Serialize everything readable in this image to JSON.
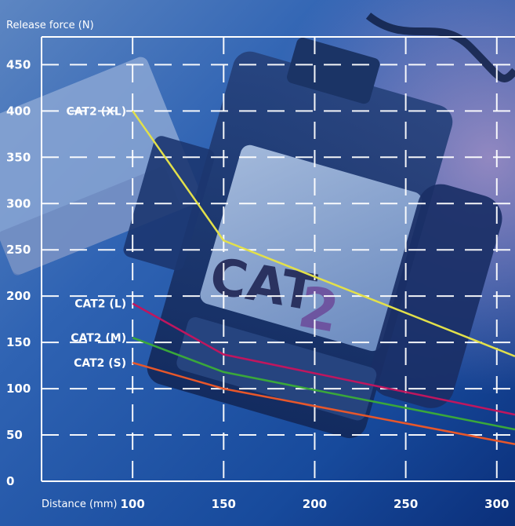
{
  "colors": {
    "background_dark": "#0b2f7a",
    "background_mid": "#2f68b8",
    "background_light": "#8fb0dc",
    "grid": "#ffffff",
    "text": "#ffffff",
    "photo_text": "#2a3260",
    "photo_text_accent": "#6c4a9a"
  },
  "background_photo_text": {
    "main": "CAT",
    "accent": "2"
  },
  "chart_data": {
    "type": "line",
    "ylabel": "Release force (N)",
    "xlabel": "Distance (mm)",
    "x_ticks": [
      100,
      150,
      200,
      250,
      300
    ],
    "y_ticks": [
      0,
      50,
      100,
      150,
      200,
      250,
      300,
      350,
      400,
      450
    ],
    "xlim": [
      50,
      310
    ],
    "ylim": [
      0,
      480
    ],
    "grid": true,
    "series": [
      {
        "name": "CAT2 (XL)",
        "color": "#e2e04a",
        "x": [
          100,
          150,
          310
        ],
        "y": [
          400,
          260,
          135
        ]
      },
      {
        "name": "CAT2 (L)",
        "color": "#c0165e",
        "x": [
          100,
          150,
          310
        ],
        "y": [
          192,
          137,
          72
        ]
      },
      {
        "name": "CAT2 (M)",
        "color": "#3aa83a",
        "x": [
          100,
          150,
          310
        ],
        "y": [
          155,
          118,
          56
        ]
      },
      {
        "name": "CAT2 (S)",
        "color": "#e8572a",
        "x": [
          100,
          150,
          310
        ],
        "y": [
          128,
          100,
          40
        ]
      }
    ]
  }
}
